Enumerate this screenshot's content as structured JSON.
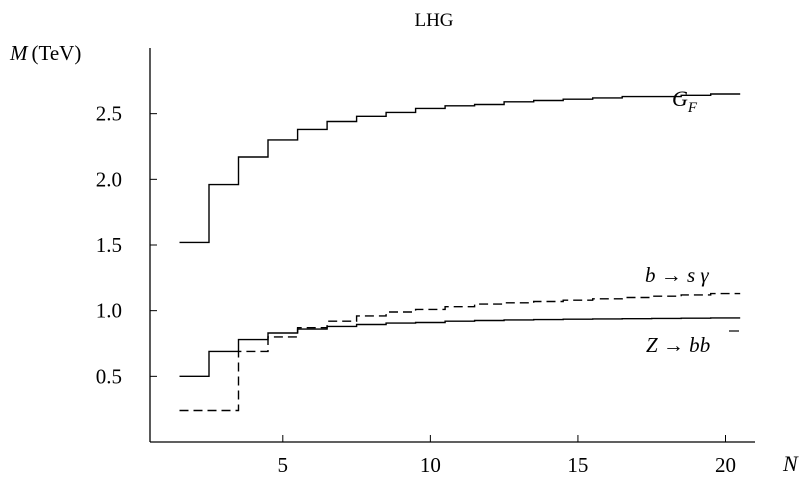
{
  "chart_data": {
    "type": "line",
    "title": "LHG",
    "xlabel": "N",
    "ylabel_symbol": "M",
    "ylabel_unit": "(TeV)",
    "xlim": [
      0.5,
      21
    ],
    "ylim": [
      0.0,
      3.0
    ],
    "x_ticks": [
      5,
      10,
      15,
      20
    ],
    "y_ticks": [
      0.5,
      1.0,
      1.5,
      2.0,
      2.5
    ],
    "x_tick_labels": [
      "5",
      "10",
      "15",
      "20"
    ],
    "y_tick_labels": [
      "0.5",
      "1.0",
      "1.5",
      "2.0",
      "2.5"
    ],
    "grid": false,
    "legend": "none",
    "step_width": 1,
    "series": [
      {
        "key": "gf",
        "label_main": "G",
        "label_sub": "F",
        "style": "solid",
        "x": [
          2,
          3,
          4,
          5,
          6,
          7,
          8,
          9,
          10,
          11,
          12,
          13,
          14,
          15,
          16,
          17,
          18,
          19,
          20
        ],
        "values": [
          1.52,
          1.96,
          2.17,
          2.3,
          2.38,
          2.44,
          2.48,
          2.51,
          2.54,
          2.56,
          2.57,
          2.59,
          2.6,
          2.61,
          2.62,
          2.63,
          2.63,
          2.64,
          2.65
        ]
      },
      {
        "key": "zbb",
        "label_main": "Z → b",
        "label_bar": "b",
        "style": "solid",
        "x": [
          2,
          3,
          4,
          5,
          6,
          7,
          8,
          9,
          10,
          11,
          12,
          13,
          14,
          15,
          16,
          17,
          18,
          19,
          20
        ],
        "values": [
          0.5,
          0.69,
          0.78,
          0.83,
          0.86,
          0.88,
          0.895,
          0.905,
          0.91,
          0.92,
          0.925,
          0.93,
          0.932,
          0.935,
          0.937,
          0.939,
          0.941,
          0.943,
          0.945
        ]
      },
      {
        "key": "bsg",
        "label_main": "b → s γ",
        "style": "dashed",
        "x": [
          2,
          3,
          4,
          5,
          6,
          7,
          8,
          9,
          10,
          11,
          12,
          13,
          14,
          15,
          16,
          17,
          18,
          19,
          20
        ],
        "values": [
          0.24,
          0.24,
          0.69,
          0.8,
          0.87,
          0.92,
          0.96,
          0.99,
          1.01,
          1.03,
          1.05,
          1.06,
          1.07,
          1.08,
          1.09,
          1.1,
          1.11,
          1.12,
          1.13
        ]
      }
    ]
  }
}
